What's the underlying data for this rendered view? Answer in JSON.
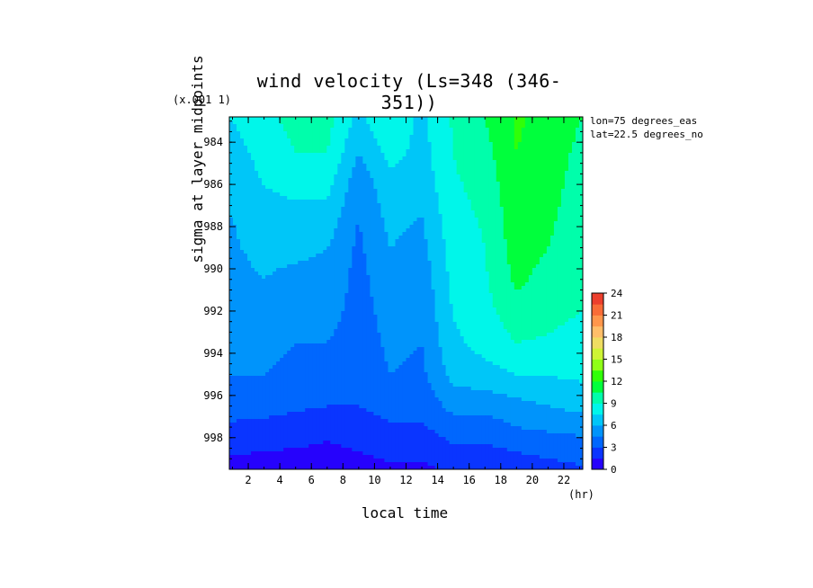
{
  "chart_data": {
    "type": "heatmap",
    "title": "wind velocity (Ls=348 (346-351))",
    "scale_note": "(x.001 1)",
    "xlabel": "local time",
    "x_unit": "(hr)",
    "ylabel": "sigma at layer midpoints",
    "annotations": [
      "lon=75 degrees_eas",
      "lat=22.5 degrees_no"
    ],
    "x_ticks": [
      "2",
      "4",
      "6",
      "8",
      "10",
      "12",
      "14",
      "16",
      "18",
      "20",
      "22"
    ],
    "y_ticks": [
      "984",
      "986",
      "988",
      "990",
      "992",
      "994",
      "996",
      "998"
    ],
    "xlim": [
      0.8,
      23.2
    ],
    "ylim": [
      982.8,
      999.5
    ],
    "y_inverted": true,
    "x": [
      1,
      3,
      5,
      7,
      9,
      11,
      13,
      15,
      17,
      19,
      21,
      23
    ],
    "y": [
      983,
      984.5,
      986,
      987.5,
      989,
      990.5,
      992,
      993.5,
      995,
      996.5,
      997.5,
      998.5,
      999.5
    ],
    "z": [
      [
        7.5,
        8.5,
        9.5,
        9.5,
        7,
        9,
        7,
        9.2,
        10.5,
        12.2,
        11.5,
        10.5
      ],
      [
        7,
        8,
        9,
        9,
        6,
        8,
        7,
        9,
        10,
        12,
        11.2,
        10.2
      ],
      [
        6.5,
        7.5,
        8,
        8,
        5,
        7,
        6.5,
        8.8,
        9.5,
        11.8,
        11,
        10
      ],
      [
        6,
        7,
        7,
        7,
        4.5,
        6.5,
        6,
        8.5,
        9.2,
        11.5,
        10.8,
        9.8
      ],
      [
        5.8,
        6.5,
        6.5,
        6,
        4.2,
        6,
        5.5,
        8.2,
        9,
        11.2,
        10.5,
        9.6
      ],
      [
        5.5,
        6,
        5.5,
        5.5,
        4,
        5.5,
        5,
        8,
        8.8,
        10.8,
        10,
        9.4
      ],
      [
        5.2,
        5.5,
        5,
        5,
        4,
        5,
        4.8,
        7.6,
        8.5,
        10,
        9.5,
        9
      ],
      [
        5,
        5,
        4.5,
        4.5,
        3.8,
        4.8,
        4.5,
        7.2,
        8,
        9,
        8.8,
        8.5
      ],
      [
        4.5,
        4.5,
        4,
        3.8,
        3.5,
        4.5,
        4.2,
        6.5,
        7,
        7.5,
        7.6,
        7.8
      ],
      [
        3.5,
        3.5,
        3.2,
        3,
        3,
        3.5,
        3.5,
        5,
        5,
        5.5,
        6,
        6.5
      ],
      [
        2.8,
        2.6,
        2.5,
        2.2,
        2.5,
        2.8,
        2.8,
        3.8,
        3.8,
        4.5,
        4.8,
        5
      ],
      [
        1.8,
        1.6,
        1.5,
        1.2,
        1.6,
        2,
        2,
        2.8,
        2.8,
        3.2,
        3.5,
        3.8
      ],
      [
        1,
        0.9,
        0.8,
        0.7,
        1,
        1.2,
        1.2,
        1.8,
        1.8,
        2.2,
        2.5,
        2.8
      ]
    ],
    "colorbar": {
      "ticks": [
        "0",
        "3",
        "6",
        "9",
        "12",
        "15",
        "18",
        "21",
        "24"
      ],
      "range": [
        0,
        24
      ],
      "step": 1.5
    }
  }
}
